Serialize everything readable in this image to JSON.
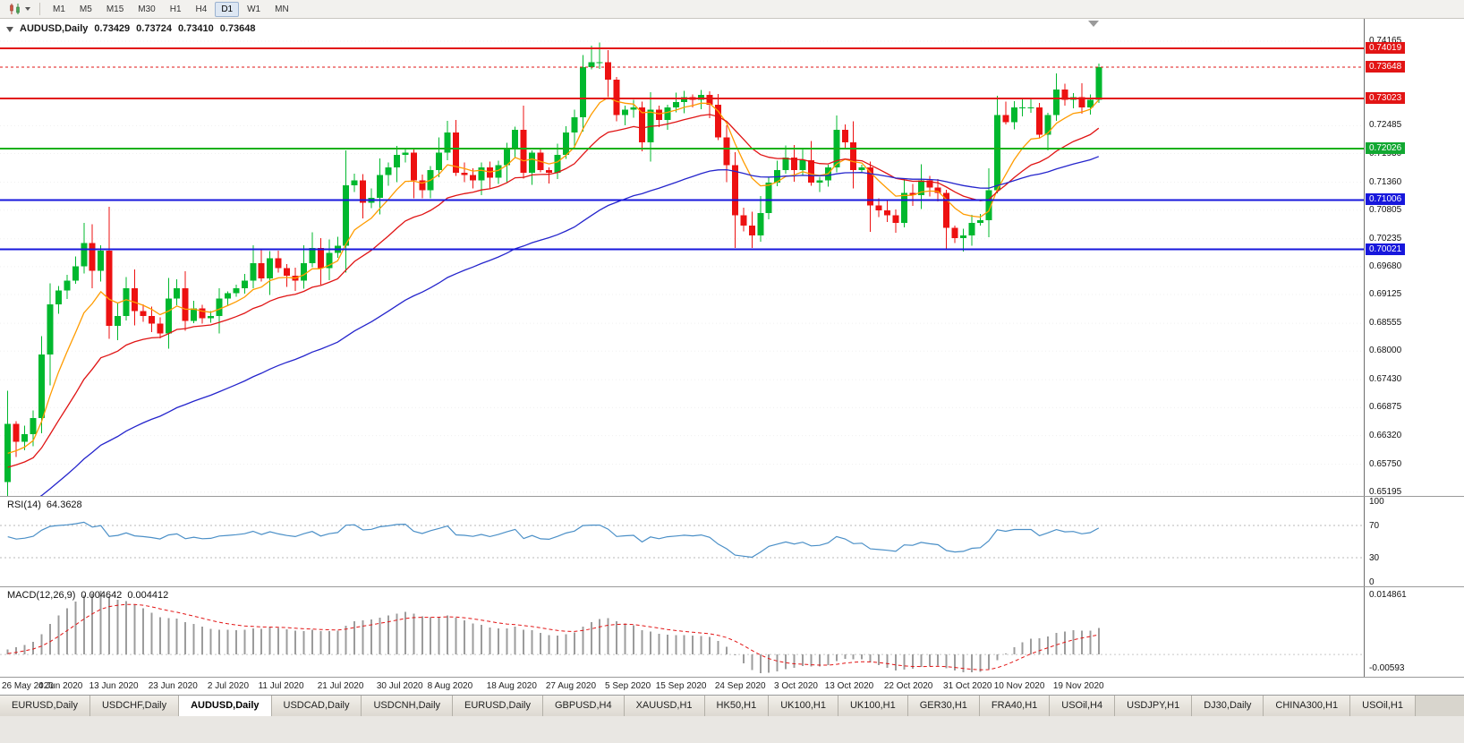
{
  "toolbar": {
    "chart_type_icon": "candlestick-chart-icon",
    "timeframes": [
      "M1",
      "M5",
      "M15",
      "M30",
      "H1",
      "H4",
      "D1",
      "W1",
      "MN"
    ],
    "active_timeframe": "D1"
  },
  "chart_header": {
    "symbol": "AUDUSD,Daily",
    "open": "0.73429",
    "high": "0.73724",
    "low": "0.73410",
    "close": "0.73648"
  },
  "price_axis": {
    "ticks": [
      "0.74165",
      "0.72485",
      "0.71930",
      "0.71360",
      "0.70805",
      "0.70235",
      "0.69680",
      "0.69125",
      "0.68555",
      "0.68000",
      "0.67430",
      "0.66875",
      "0.66320",
      "0.65750",
      "0.65195"
    ],
    "badges": [
      {
        "text": "0.74019",
        "price": 0.74019,
        "color": "#e21414"
      },
      {
        "text": "0.73648",
        "price": 0.73648,
        "color": "#e21414"
      },
      {
        "text": "0.73023",
        "price": 0.73023,
        "color": "#e21414"
      },
      {
        "text": "0.72026",
        "price": 0.72026,
        "color": "#12a832"
      },
      {
        "text": "0.71006",
        "price": 0.71006,
        "color": "#1717dc"
      },
      {
        "text": "0.70021",
        "price": 0.70021,
        "color": "#1717dc"
      }
    ]
  },
  "chart_data": {
    "type": "candlestick",
    "symbol": "AUDUSD",
    "period": "Daily",
    "y_range": {
      "min": 0.6512,
      "max": 0.7461
    },
    "x_labels": [
      "26 May 2020",
      "4 Jun 2020",
      "13 Jun 2020",
      "23 Jun 2020",
      "2 Jul 2020",
      "11 Jul 2020",
      "21 Jul 2020",
      "30 Jul 2020",
      "8 Aug 2020",
      "18 Aug 2020",
      "27 Aug 2020",
      "5 Sep 2020",
      "15 Sep 2020",
      "24 Sep 2020",
      "3 Oct 2020",
      "13 Oct 2020",
      "22 Oct 2020",
      "31 Oct 2020",
      "10 Nov 2020",
      "19 Nov 2020"
    ],
    "first_open": 0.654,
    "closes": [
      0.6655,
      0.662,
      0.6635,
      0.6667,
      0.6793,
      0.6893,
      0.6921,
      0.694,
      0.6969,
      0.7015,
      0.696,
      0.7,
      0.685,
      0.687,
      0.6925,
      0.688,
      0.687,
      0.6855,
      0.6835,
      0.6905,
      0.6925,
      0.686,
      0.6885,
      0.6865,
      0.687,
      0.6905,
      0.6915,
      0.6925,
      0.694,
      0.6975,
      0.6945,
      0.6985,
      0.6965,
      0.695,
      0.694,
      0.6975,
      0.7005,
      0.6965,
      0.6995,
      0.701,
      0.713,
      0.714,
      0.7095,
      0.7105,
      0.715,
      0.7165,
      0.719,
      0.7195,
      0.714,
      0.712,
      0.716,
      0.7195,
      0.7235,
      0.7155,
      0.715,
      0.714,
      0.7165,
      0.7145,
      0.717,
      0.7205,
      0.724,
      0.7155,
      0.7195,
      0.716,
      0.7155,
      0.719,
      0.7235,
      0.7265,
      0.7365,
      0.7375,
      0.7375,
      0.734,
      0.727,
      0.728,
      0.7285,
      0.7215,
      0.728,
      0.726,
      0.7285,
      0.7295,
      0.7305,
      0.73,
      0.731,
      0.729,
      0.7225,
      0.717,
      0.707,
      0.705,
      0.703,
      0.7075,
      0.7135,
      0.716,
      0.7185,
      0.716,
      0.718,
      0.7135,
      0.714,
      0.7165,
      0.724,
      0.7215,
      0.716,
      0.7165,
      0.709,
      0.708,
      0.707,
      0.7055,
      0.7115,
      0.711,
      0.714,
      0.7125,
      0.7115,
      0.7045,
      0.7025,
      0.703,
      0.7055,
      0.706,
      0.712,
      0.727,
      0.7255,
      0.7285,
      0.7285,
      0.7285,
      0.723,
      0.727,
      0.732,
      0.73,
      0.7305,
      0.7285,
      0.73,
      0.7365
    ],
    "wick_overrides": {
      "69": {
        "h": 0.7408
      },
      "70": {
        "h": 0.7414
      },
      "71": {
        "h": 0.7399
      },
      "88": {
        "l": 0.7005
      },
      "113": {
        "l": 0.6998
      },
      "129": {
        "h": 0.7372
      }
    },
    "horizontal_lines": [
      {
        "price": 0.74019,
        "color": "#e21414"
      },
      {
        "price": 0.73023,
        "color": "#e21414"
      },
      {
        "price": 0.72026,
        "color": "#17b117"
      },
      {
        "price": 0.71006,
        "color": "#1717dc"
      },
      {
        "price": 0.70021,
        "color": "#1717dc"
      }
    ],
    "current_price": 0.73648,
    "current_price_color": "#e21414",
    "candle_up_color": "#00b82e",
    "candle_down_color": "#ed1111",
    "moving_averages": [
      {
        "name": "ma-fast",
        "period": 8,
        "seed": 0.658,
        "color": "#ff9c00"
      },
      {
        "name": "ma-medium",
        "period": 20,
        "seed": 0.656,
        "color": "#e01414"
      },
      {
        "name": "ma-slow",
        "period": 55,
        "seed": 0.648,
        "color": "#2424cc"
      }
    ]
  },
  "rsi_panel": {
    "label": "RSI(14)",
    "value": "64.3628",
    "period": 14,
    "levels": [
      70,
      30
    ],
    "axis_labels": [
      "100",
      "70",
      "30",
      "0"
    ],
    "line_color": "#4a8fc7",
    "level_color": "#b8b8b8"
  },
  "macd_panel": {
    "label": "MACD(12,26,9)",
    "value_macd": "0.004642",
    "value_signal": "0.004412",
    "fast": 12,
    "slow": 26,
    "signal": 9,
    "axis_top": "0.014861",
    "axis_bottom": "-0.00593",
    "histogram_color": "#9c9c9c",
    "signal_color": "#e21414"
  },
  "tabs": {
    "items": [
      "EURUSD,Daily",
      "USDCHF,Daily",
      "AUDUSD,Daily",
      "USDCAD,Daily",
      "USDCNH,Daily",
      "EURUSD,Daily",
      "GBPUSD,H4",
      "XAUUSD,H1",
      "HK50,H1",
      "UK100,H1",
      "UK100,H1",
      "GER30,H1",
      "FRA40,H1",
      "USOil,H4",
      "USDJPY,H1",
      "DJ30,Daily",
      "CHINA300,H1",
      "USOil,H1"
    ],
    "active_index": 2
  }
}
